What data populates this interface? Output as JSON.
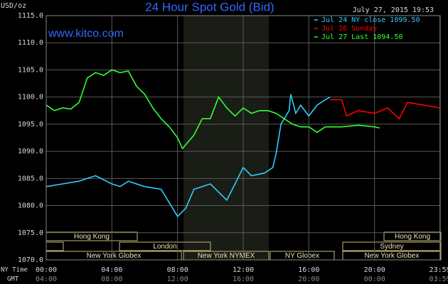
{
  "chart_data": {
    "type": "line",
    "title": "24 Hour Spot Gold (Bid)",
    "subtitle": "www.kitco.com",
    "timestamp": "July 27, 2015 19:53",
    "y_label": "USD/oz",
    "x_label": "NY Time",
    "x2_label": "GMT",
    "xlim": [
      0,
      24
    ],
    "ylim": [
      1070,
      1115
    ],
    "yticks": [
      {
        "value": 1070,
        "label": "1070.0"
      },
      {
        "value": 1075,
        "label": "1075.0"
      },
      {
        "value": 1080,
        "label": "1080.0"
      },
      {
        "value": 1085,
        "label": "1085.0"
      },
      {
        "value": 1090,
        "label": "1090.0"
      },
      {
        "value": 1095,
        "label": "1095.0"
      },
      {
        "value": 1100,
        "label": "1100.0"
      },
      {
        "value": 1105,
        "label": "1105.0"
      },
      {
        "value": 1110,
        "label": "1110.0"
      },
      {
        "value": 1115,
        "label": "1115.0"
      }
    ],
    "xticks": [
      {
        "value": 0,
        "label": "00:00"
      },
      {
        "value": 4,
        "label": "04:00"
      },
      {
        "value": 8,
        "label": "08:00"
      },
      {
        "value": 12,
        "label": "12:00"
      },
      {
        "value": 16,
        "label": "16:00"
      },
      {
        "value": 20,
        "label": "20:00"
      },
      {
        "value": 23.983,
        "label": "23:59"
      }
    ],
    "x2ticks": [
      {
        "value": 0,
        "label": "04:00"
      },
      {
        "value": 4,
        "label": "08:00"
      },
      {
        "value": 8,
        "label": "12:00"
      },
      {
        "value": 12,
        "label": "16:00"
      },
      {
        "value": 16,
        "label": "20:00"
      },
      {
        "value": 20,
        "label": "00:00"
      },
      {
        "value": 23.983,
        "label": "03:59"
      }
    ],
    "grid": true,
    "legend": "top-right",
    "sessions": [
      "Hong Kong",
      "London",
      "New York Globex",
      "New York NYMEX",
      "NY Globex",
      "Sydney",
      "Hong Kong",
      "New York Globex"
    ],
    "series": [
      {
        "name": "Jul 24 NY close 1099.50",
        "color": "#33ccff",
        "x": [
          0,
          1,
          2,
          3,
          4,
          4.5,
          5,
          6,
          7,
          8,
          8.5,
          9,
          10,
          11,
          11.5,
          12,
          12.5,
          13.3,
          13.8,
          14,
          14.3,
          14.8,
          14.9,
          15.2,
          15.5,
          16,
          16.5,
          17,
          17.3
        ],
        "values": [
          1083.5,
          1084,
          1084.5,
          1085.5,
          1084,
          1083.5,
          1084.5,
          1083.5,
          1083,
          1078,
          1079.5,
          1083,
          1084,
          1081,
          1084,
          1087,
          1085.5,
          1086,
          1087,
          1089.5,
          1095,
          1097.5,
          1100.5,
          1097,
          1098.5,
          1096.5,
          1098.5,
          1099.5,
          1100
        ]
      },
      {
        "name": "Jul 26 Sunday",
        "color": "#ff0000",
        "x": [
          17.3,
          18,
          18.3,
          19,
          20,
          20.8,
          21.5,
          22,
          23,
          24
        ],
        "values": [
          1099.5,
          1099.5,
          1096.5,
          1097.5,
          1097,
          1098,
          1096,
          1099,
          1098.5,
          1098
        ]
      },
      {
        "name": "Jul 27 Last 1094.50",
        "color": "#33ff33",
        "x": [
          0,
          0.5,
          1,
          1.5,
          2,
          2.5,
          3,
          3.5,
          4,
          4.5,
          5,
          5.5,
          6,
          6.5,
          7,
          7.5,
          8,
          8.3,
          9,
          9.5,
          10,
          10.5,
          11,
          11.5,
          12,
          12.5,
          13,
          13.5,
          14,
          14.5,
          15,
          15.5,
          16,
          16.5,
          17,
          18,
          19,
          20,
          20.3
        ],
        "values": [
          1098.5,
          1097.5,
          1098,
          1097.8,
          1099,
          1103.5,
          1104.5,
          1104,
          1105,
          1104.5,
          1104.8,
          1102,
          1100.5,
          1098,
          1096,
          1094.5,
          1092.5,
          1090.5,
          1093,
          1096,
          1096,
          1100,
          1098,
          1096.5,
          1098,
          1097,
          1097.5,
          1097.5,
          1097,
          1096,
          1095,
          1094.5,
          1094.5,
          1093.5,
          1094.5,
          1094.5,
          1094.8,
          1094.5,
          1094.3
        ]
      }
    ]
  }
}
